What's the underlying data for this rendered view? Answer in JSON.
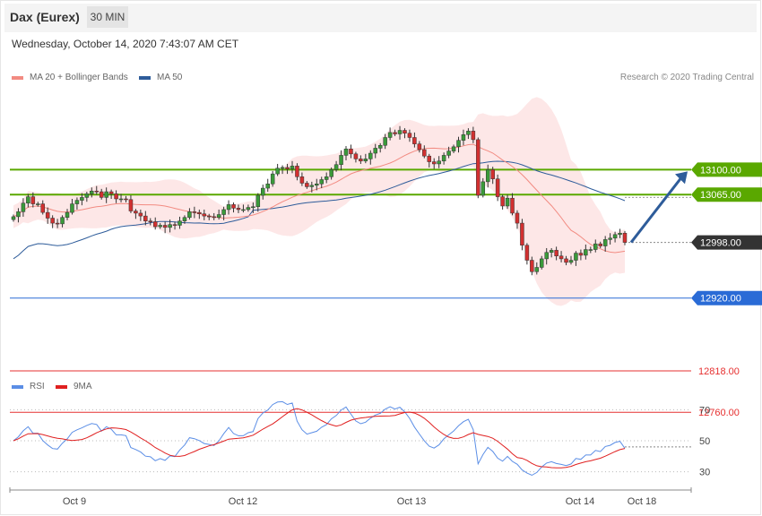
{
  "header": {
    "instrument": "Dax (Eurex)",
    "timeframe": "30 MIN",
    "datetime": "Wednesday, October 14, 2020 7:43:07 AM CET"
  },
  "legend": {
    "ma20": {
      "label": "MA 20 + Bollinger Bands",
      "color": "#f28b82"
    },
    "ma50": {
      "label": "MA 50",
      "color": "#2e5c9a"
    },
    "rsi": {
      "label": "RSI",
      "color": "#5b8ee6"
    },
    "rsi_ma": {
      "label": "9MA",
      "color": "#e02020"
    }
  },
  "copyright": "Research © 2020 Trading Central",
  "chart_data": {
    "type": "candlestick",
    "x_ticks": [
      "Oct 9",
      "Oct 12",
      "Oct 13",
      "Oct 14",
      "Oct 18"
    ],
    "ylim": [
      12700,
      13300
    ],
    "levels": [
      {
        "value": 13100.0,
        "label": "13100.00",
        "kind": "resistance",
        "color": "#5aa800"
      },
      {
        "value": 13065.0,
        "label": "13065.00",
        "kind": "resistance",
        "color": "#5aa800"
      },
      {
        "value": 12998.0,
        "label": "12998.00",
        "kind": "last",
        "color": "#333333"
      },
      {
        "value": 12920.0,
        "label": "12920.00",
        "kind": "support",
        "color": "#2a6bd6"
      },
      {
        "value": 12818.0,
        "label": "12818.00",
        "kind": "support",
        "color": "#e63030"
      },
      {
        "value": 12760.0,
        "label": "12760.00",
        "kind": "support",
        "color": "#e63030"
      }
    ],
    "closes": [
      13034,
      13041,
      13053,
      13062,
      13052,
      13052,
      13040,
      13032,
      13025,
      13024,
      13033,
      13040,
      13052,
      13057,
      13061,
      13066,
      13070,
      13069,
      13061,
      13069,
      13066,
      13059,
      13059,
      13058,
      13042,
      13039,
      13035,
      13028,
      13027,
      13020,
      13022,
      13019,
      13023,
      13022,
      13028,
      13033,
      13041,
      13040,
      13038,
      13035,
      13034,
      13033,
      13037,
      13044,
      13051,
      13046,
      13044,
      13044,
      13047,
      13048,
      13064,
      13074,
      13080,
      13094,
      13102,
      13103,
      13101,
      13105,
      13090,
      13081,
      13076,
      13078,
      13080,
      13086,
      13090,
      13100,
      13107,
      13120,
      13129,
      13122,
      13115,
      13112,
      13115,
      13123,
      13130,
      13134,
      13145,
      13152,
      13150,
      13155,
      13151,
      13145,
      13136,
      13128,
      13119,
      13111,
      13108,
      13112,
      13120,
      13126,
      13132,
      13141,
      13149,
      13154,
      13142,
      13064,
      13083,
      13100,
      13087,
      13062,
      13049,
      13060,
      13039,
      13025,
      12994,
      12973,
      12957,
      12963,
      12975,
      12984,
      12987,
      12979,
      12975,
      12970,
      12973,
      12983,
      12980,
      12988,
      12988,
      12996,
      12993,
      13002,
      13004,
      13009,
      13011,
      12998
    ],
    "rsi_ylim": [
      20,
      80
    ],
    "rsi_levels": [
      30,
      50,
      70
    ],
    "rsi_last": 46
  }
}
